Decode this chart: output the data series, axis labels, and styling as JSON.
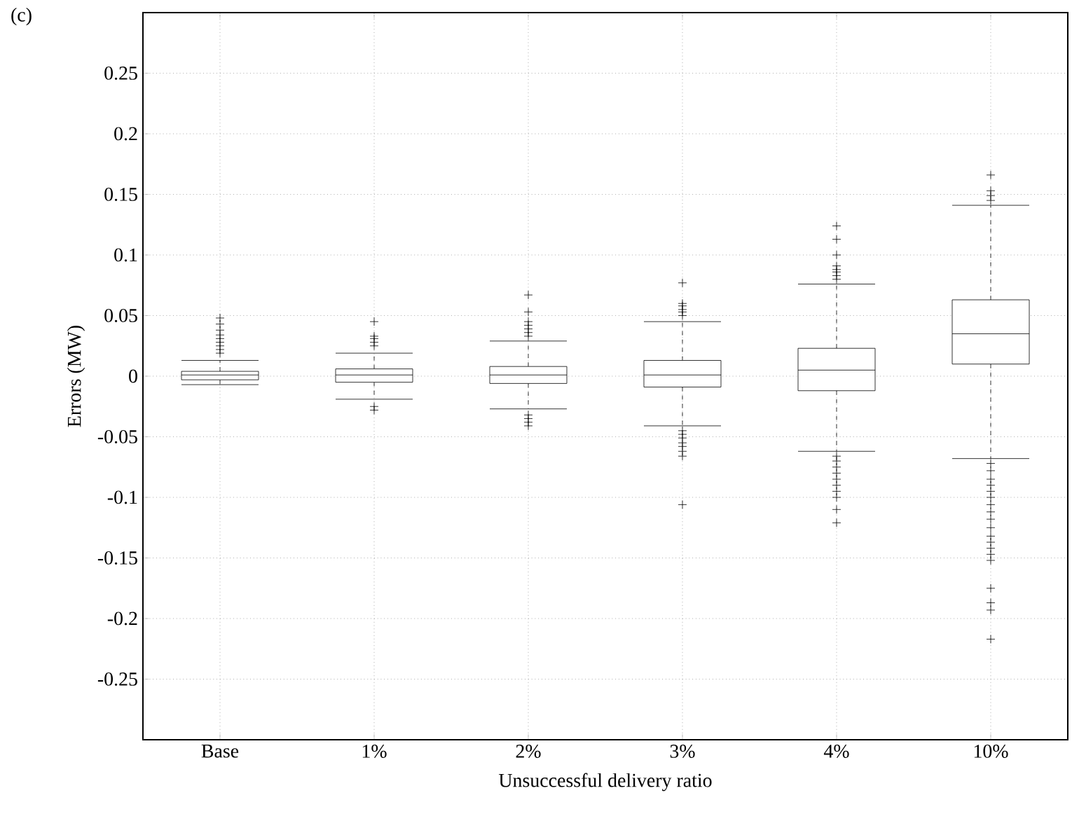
{
  "chart_data": {
    "type": "box",
    "xlabel": "Unsuccessful delivery ratio",
    "ylabel": "Errors (MW)",
    "annotations": [
      "(c)"
    ],
    "categories": [
      "Base",
      "1%",
      "2%",
      "3%",
      "4%",
      "10%"
    ],
    "ylim": [
      -0.3,
      0.3
    ],
    "yticks": [
      -0.25,
      -0.2,
      -0.15,
      -0.1,
      -0.05,
      0,
      0.05,
      0.1,
      0.15,
      0.2,
      0.25
    ],
    "grid": true,
    "marker": "cross",
    "line_style": "dashed",
    "series": [
      {
        "color": "#000000",
        "boxes": [
          {
            "low": -0.007,
            "q1": -0.003,
            "median": 0.001,
            "q3": 0.004,
            "high": 0.013,
            "outliers": [
              0.019,
              0.022,
              0.025,
              0.028,
              0.031,
              0.034,
              0.038,
              0.043,
              0.048
            ]
          },
          {
            "low": -0.019,
            "q1": -0.005,
            "median": 0.001,
            "q3": 0.006,
            "high": 0.019,
            "outliers": [
              0.025,
              0.028,
              0.031,
              0.033,
              0.045,
              -0.025,
              -0.028
            ]
          },
          {
            "low": -0.027,
            "q1": -0.006,
            "median": 0.001,
            "q3": 0.008,
            "high": 0.029,
            "outliers": [
              0.033,
              0.036,
              0.039,
              0.042,
              0.045,
              0.053,
              0.067,
              -0.032,
              -0.035,
              -0.038,
              -0.041
            ]
          },
          {
            "low": -0.041,
            "q1": -0.009,
            "median": 0.001,
            "q3": 0.013,
            "high": 0.045,
            "outliers": [
              0.05,
              0.053,
              0.055,
              0.058,
              0.06,
              0.077,
              -0.045,
              -0.048,
              -0.051,
              -0.055,
              -0.058,
              -0.062,
              -0.066,
              -0.106
            ]
          },
          {
            "low": -0.062,
            "q1": -0.012,
            "median": 0.005,
            "q3": 0.023,
            "high": 0.076,
            "outliers": [
              0.08,
              0.083,
              0.086,
              0.088,
              0.091,
              0.1,
              0.113,
              0.124,
              -0.066,
              -0.07,
              -0.075,
              -0.08,
              -0.085,
              -0.09,
              -0.095,
              -0.1,
              -0.11,
              -0.121
            ]
          },
          {
            "low": -0.068,
            "q1": 0.01,
            "median": 0.035,
            "q3": 0.063,
            "high": 0.141,
            "outliers": [
              0.145,
              0.149,
              0.153,
              0.166,
              -0.072,
              -0.078,
              -0.085,
              -0.09,
              -0.095,
              -0.1,
              -0.106,
              -0.112,
              -0.118,
              -0.125,
              -0.132,
              -0.137,
              -0.142,
              -0.147,
              -0.152,
              -0.175,
              -0.187,
              -0.193,
              -0.217
            ]
          }
        ]
      }
    ]
  }
}
